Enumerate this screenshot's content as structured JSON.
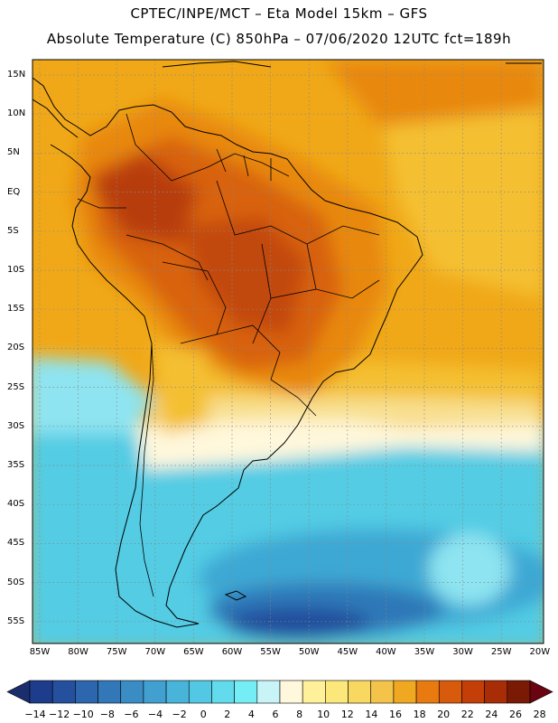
{
  "title": {
    "line1": "CPTEC/INPE/MCT –  Eta Model 15km – GFS",
    "line2": "Absolute Temperature (C) 850hPa – 07/06/2020 12UTC fct=189h"
  },
  "lat_labels": [
    "15N",
    "10N",
    "5N",
    "EQ",
    "5S",
    "10S",
    "15S",
    "20S",
    "25S",
    "30S",
    "35S",
    "40S",
    "45S",
    "50S",
    "55S"
  ],
  "lon_labels": [
    "85W",
    "80W",
    "75W",
    "70W",
    "65W",
    "60W",
    "55W",
    "50W",
    "45W",
    "40W",
    "35W",
    "30W",
    "25W",
    "20W"
  ],
  "colorbar": {
    "labels": [
      "-14",
      "-12",
      "-10",
      "-8",
      "-6",
      "-4",
      "-2",
      "0",
      "2",
      "4",
      "6",
      "8",
      "10",
      "12",
      "14",
      "16",
      "18",
      "20",
      "22",
      "24",
      "26",
      "28"
    ],
    "colors": [
      "#1e3c8c",
      "#24509e",
      "#2d66ae",
      "#3278b8",
      "#3a8cc4",
      "#41a0cf",
      "#48b4da",
      "#52c8e4",
      "#62dcec",
      "#74eef4",
      "#c8f4f8",
      "#fff8dc",
      "#fff09a",
      "#fce87a",
      "#f8d860",
      "#f4c44a",
      "#f0a820",
      "#e87a10",
      "#d85a0c",
      "#c43e08",
      "#a82c06",
      "#7a1a04"
    ],
    "left_arrow_color": "#1a2e6e",
    "right_arrow_color": "#6a0410"
  },
  "field_colors": {
    "very_hot": "#b83c08",
    "hot": "#d8620c",
    "warm_orange": "#e8880e",
    "orange": "#f0a818",
    "yellow_orange": "#f4c030",
    "light_yellow": "#f8e090",
    "cream": "#fff8dc",
    "cyan_light": "#8ee4f0",
    "cyan": "#52cce4",
    "blue_light": "#3ca8d4",
    "blue": "#2e78b8",
    "dark_blue": "#244e9c"
  }
}
